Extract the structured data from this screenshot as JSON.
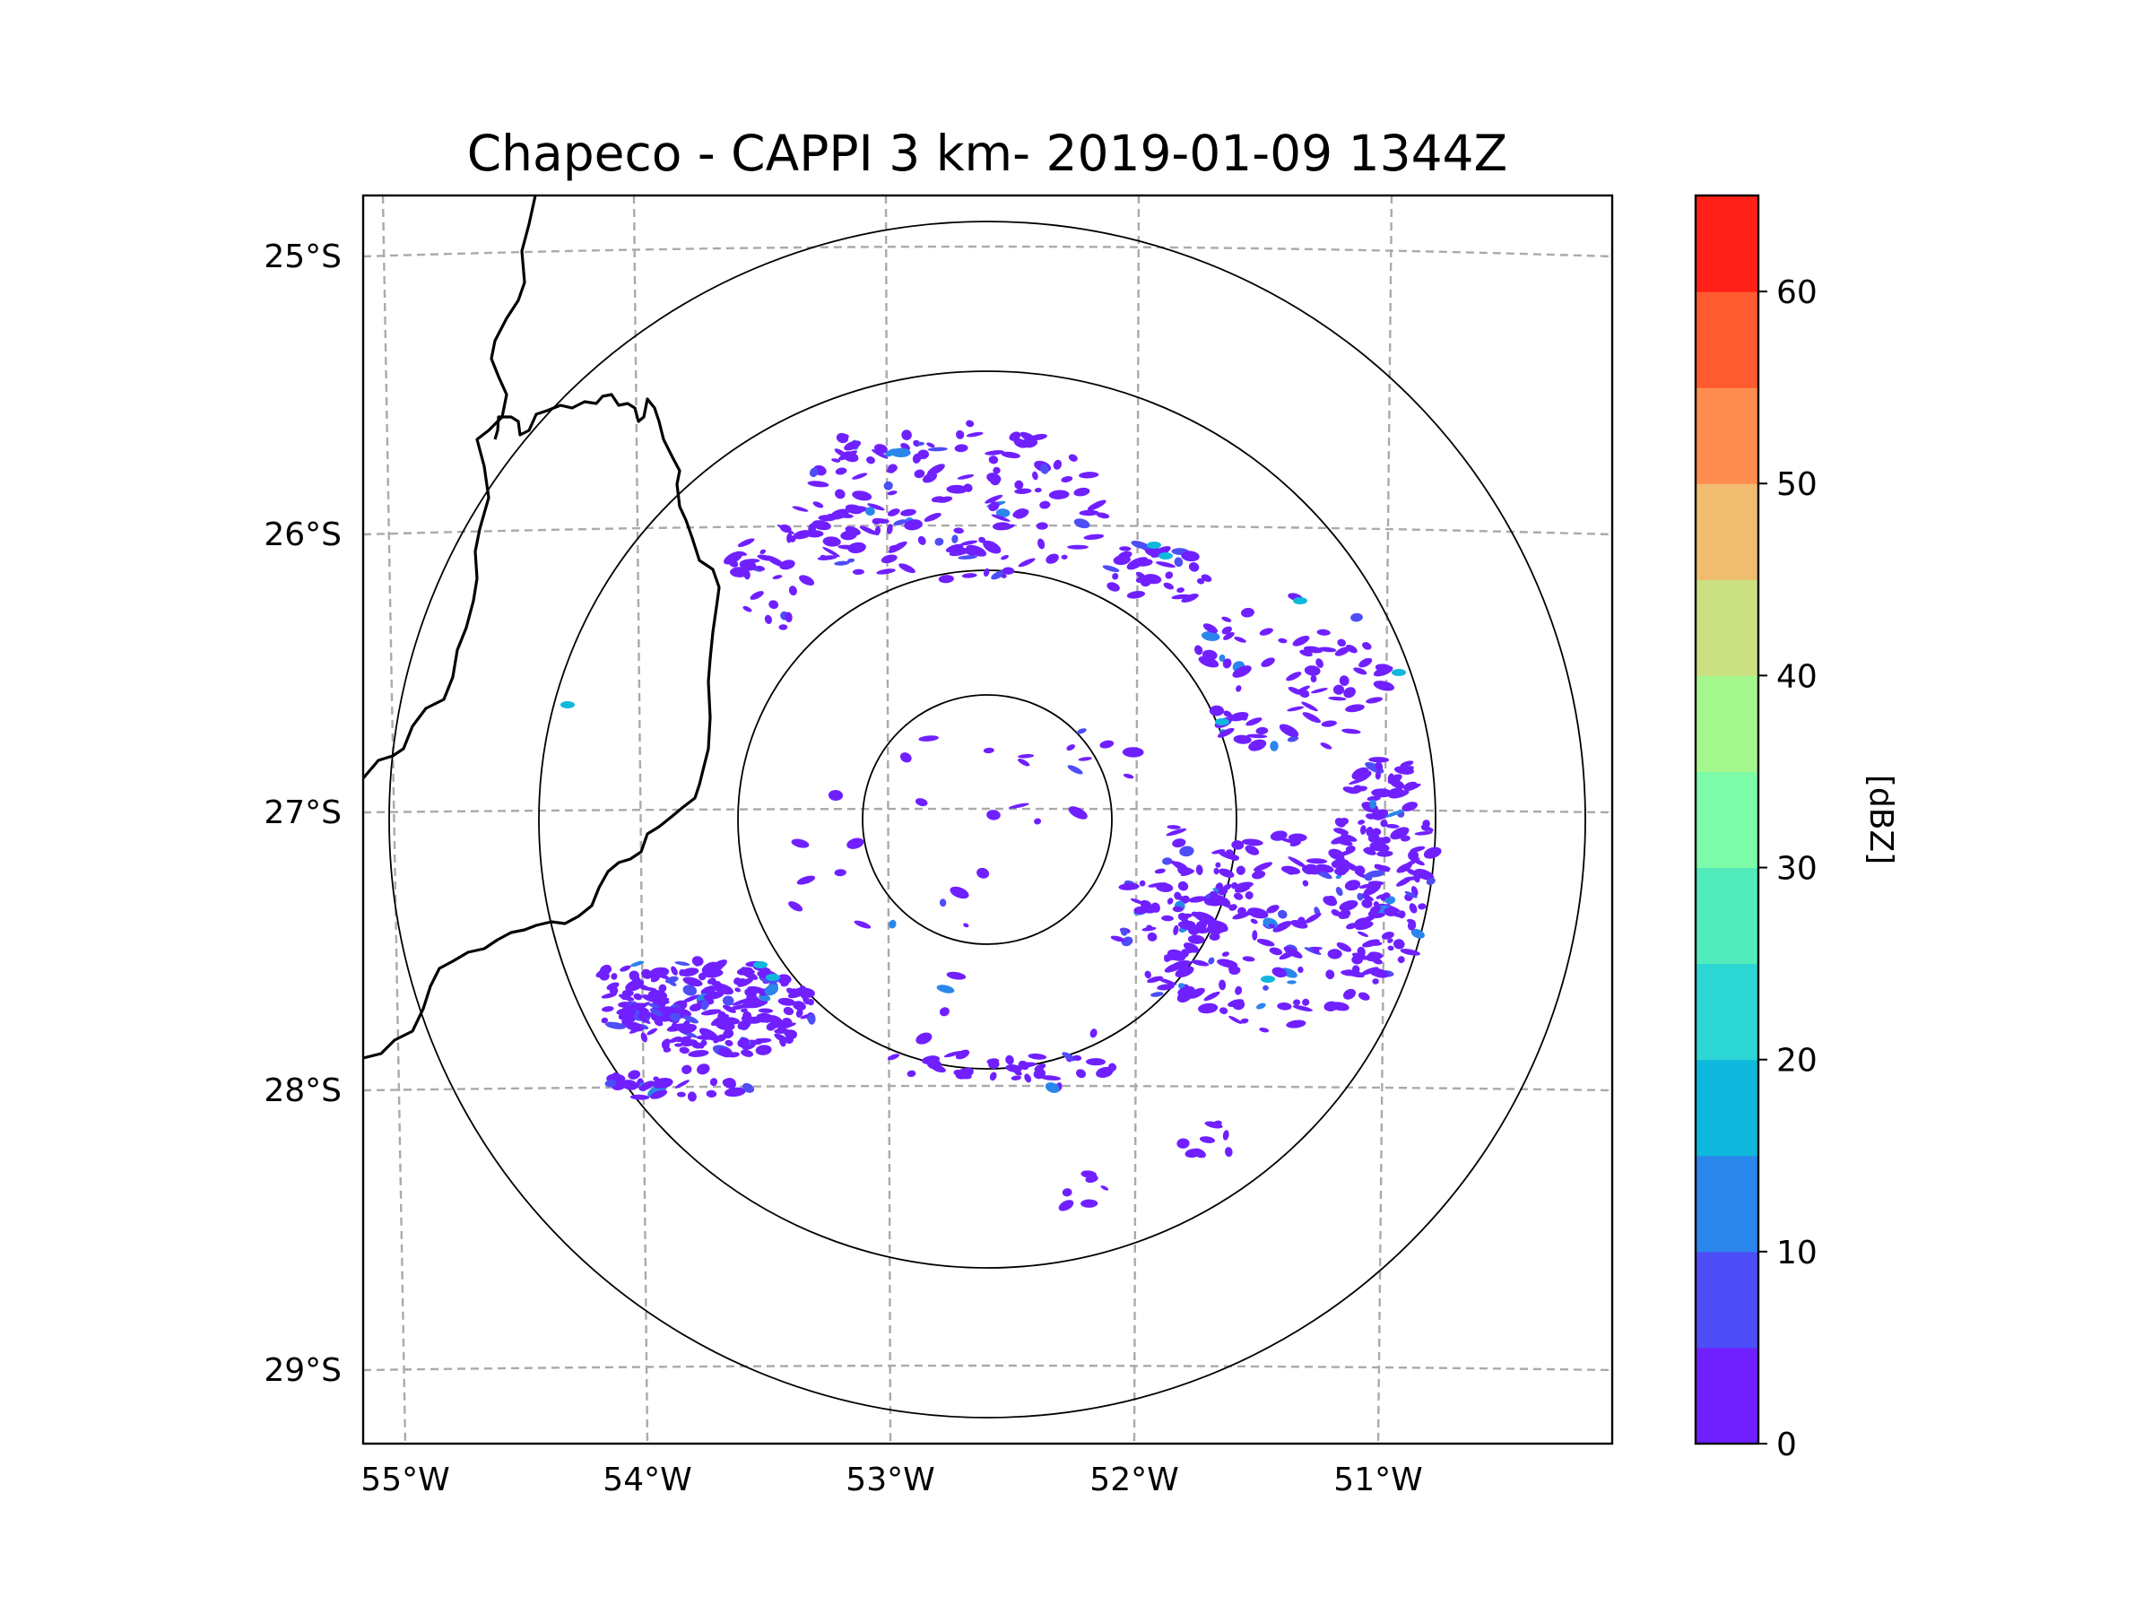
{
  "title": "Chapeco - CAPPI 3 km- 2019-01-09 1344Z",
  "map": {
    "lat_labels": [
      "25°S",
      "26°S",
      "27°S",
      "28°S",
      "29°S"
    ],
    "lon_labels": [
      "55°W",
      "54°W",
      "53°W",
      "52°W",
      "51°W"
    ],
    "gridline_color": "#aaaaaa",
    "boundary_color": "#000000"
  },
  "radar": {
    "name": "Chapeco",
    "product": "CAPPI",
    "height": "3 km",
    "timestamp": "2019-01-09 1344Z",
    "range_rings_count": 4
  },
  "colorbar": {
    "label": "[dBZ]",
    "tick_labels": [
      "0",
      "10",
      "20",
      "30",
      "40",
      "50",
      "60"
    ],
    "min": 0,
    "max": 65,
    "step": 5,
    "colors": [
      "#7020ff",
      "#4e4ef8",
      "#2b86ec",
      "#0eb8dc",
      "#2cd6d4",
      "#52ecbc",
      "#7cfca8",
      "#a4f88e",
      "#cbe080",
      "#f0bc70",
      "#ff8d50",
      "#ff5a30",
      "#ff2018"
    ]
  },
  "precip_colors": {
    "low": "#7020ff",
    "mid": "#4e4ef8",
    "high": "#2b86ec",
    "peak": "#0eb8dc"
  }
}
